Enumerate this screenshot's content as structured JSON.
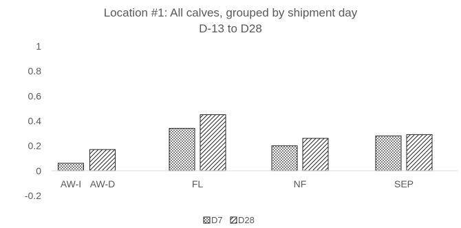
{
  "chart_data": {
    "type": "bar",
    "title": [
      "Location #1: All calves, grouped by shipment day",
      "D-13 to D28"
    ],
    "categories": [
      "AW-I",
      "AW-D",
      "FL",
      "NF",
      "SEP"
    ],
    "series": [
      {
        "name": "D7",
        "pattern": "dots",
        "values": [
          0.06,
          null,
          0.34,
          0.2,
          0.28
        ]
      },
      {
        "name": "D28",
        "pattern": "hatch",
        "values": [
          null,
          0.17,
          0.45,
          0.26,
          0.29
        ]
      }
    ],
    "ylim": [
      -0.2,
      1
    ],
    "yticks": [
      1,
      0.8,
      0.6,
      0.4,
      0.2,
      0,
      -0.2
    ],
    "ytick_labels": [
      "1",
      "0.8",
      "0.6",
      "0.4",
      "0.2",
      "0",
      "-0.2"
    ],
    "grid": false,
    "legend_position": "bottom",
    "colors": {
      "text": "#595959",
      "bar_stroke": "#262626",
      "axis": "#d9d9d9"
    }
  }
}
